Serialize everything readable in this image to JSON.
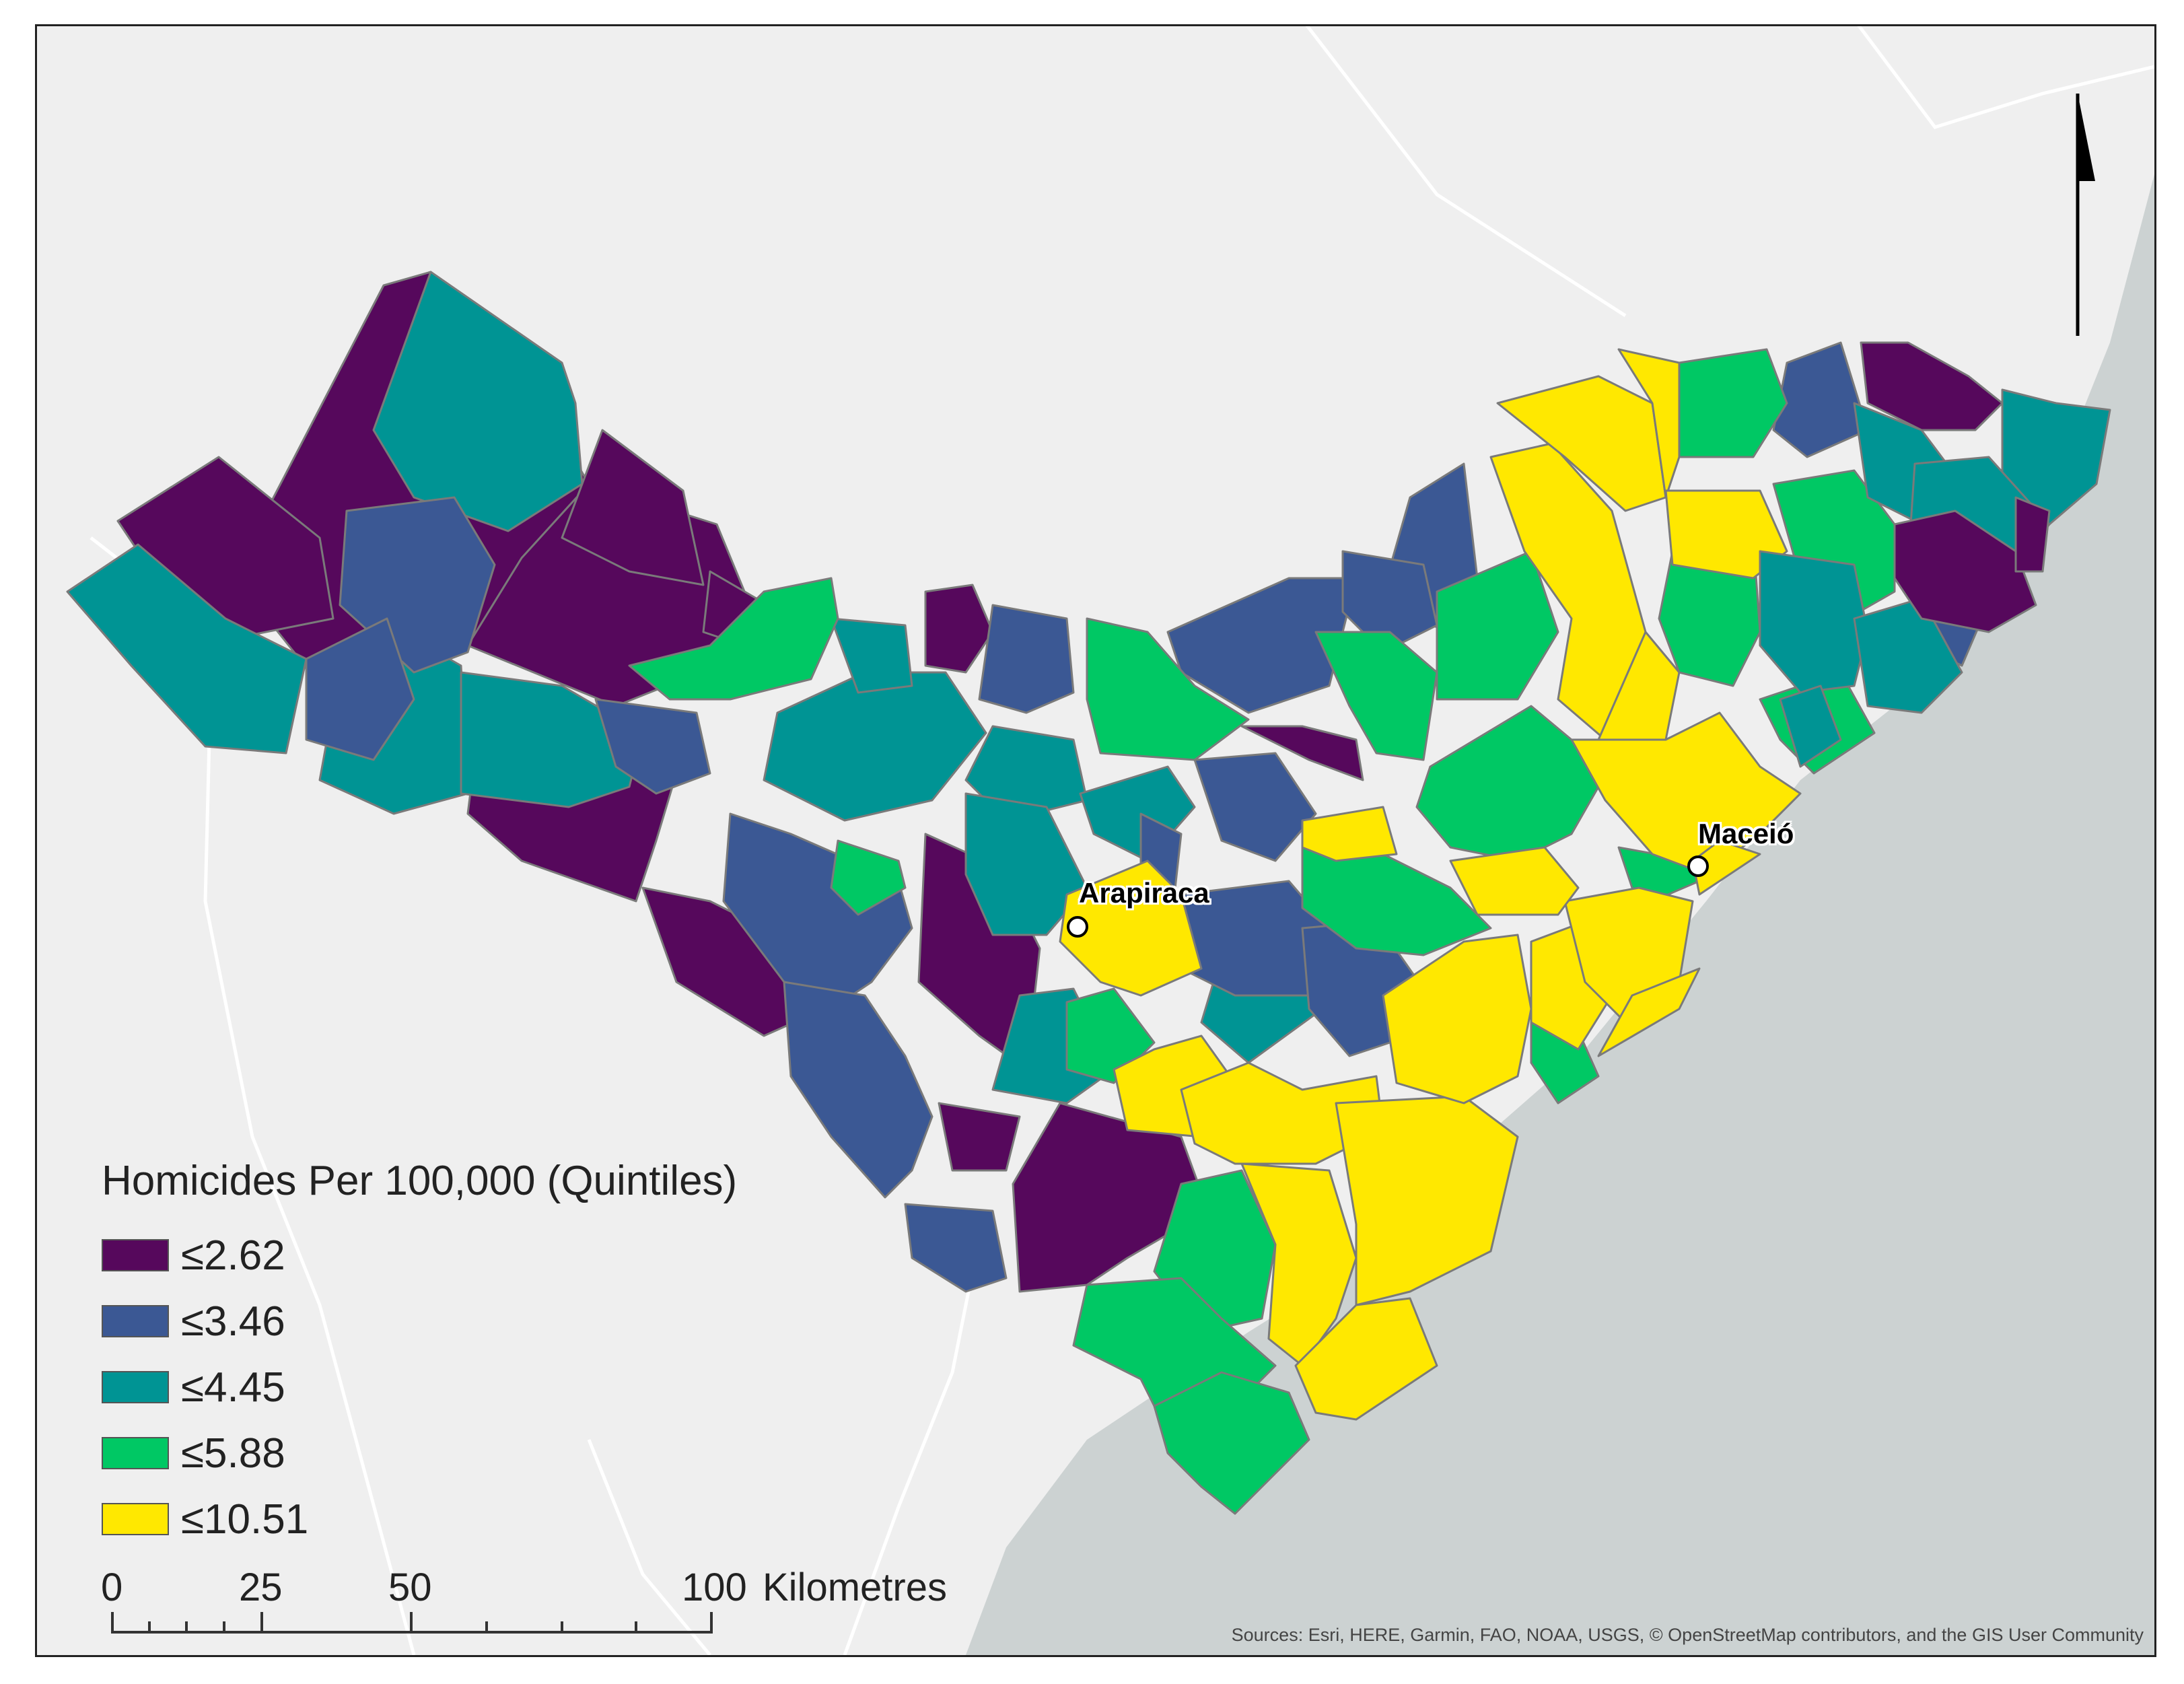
{
  "legend": {
    "title": "Homicides Per 100,000 (Quintiles)",
    "classes": [
      {
        "label": "≤2.62",
        "color": "#56085c"
      },
      {
        "label": "≤3.46",
        "color": "#3b5894"
      },
      {
        "label": "≤4.45",
        "color": "#009494"
      },
      {
        "label": "≤5.88",
        "color": "#00c864"
      },
      {
        "label": "≤10.51",
        "color": "#ffe800"
      }
    ]
  },
  "cities": [
    {
      "name": "Arapiraca"
    },
    {
      "name": "Maceió"
    }
  ],
  "scale_bar": {
    "labels": [
      "0",
      "25",
      "50",
      "100"
    ],
    "unit": "Kilometres"
  },
  "north_arrow": {
    "icon": "north-arrow-icon"
  },
  "attribution": "Sources: Esri, HERE, Garmin, FAO, NOAA, USGS, © OpenStreetMap contributors, and the GIS User Community",
  "colors": {
    "background_land": "#efefef",
    "ocean": "#ccd2d2",
    "region_border": "#7a7a7a"
  }
}
